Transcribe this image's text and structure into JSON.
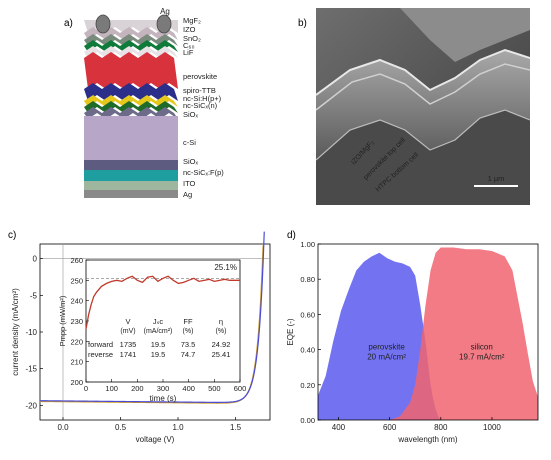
{
  "panel_a": {
    "label": "a)",
    "contact_label": "Ag",
    "layers": [
      {
        "name": "MgF₂",
        "color": "#d9d2d6"
      },
      {
        "name": "IZO",
        "color": "#c3b4be"
      },
      {
        "name": "SnO₂",
        "color": "#7a8a7d"
      },
      {
        "name": "C₆₀",
        "color": "#0f7a3a"
      },
      {
        "name": "LiF",
        "color": "#e8e2e6"
      },
      {
        "name": "perovskite",
        "color": "#d8323c"
      },
      {
        "name": "spiro-TTB",
        "color": "#2b2f8a"
      },
      {
        "name": "nc-Si:H(p+)",
        "color": "#e6c81c"
      },
      {
        "name": "nc-SiCₓ(n)",
        "color": "#1f6b2a"
      },
      {
        "name": "SiOₓ",
        "color": "#6d6b8a"
      },
      {
        "name": "c-Si",
        "color": "#b7a6c8"
      },
      {
        "name": "SiOₓ",
        "color": "#5d5c80"
      },
      {
        "name": "nc-SiCₓ:F(p)",
        "color": "#1e9e9e"
      },
      {
        "name": "ITO",
        "color": "#9eb59e"
      },
      {
        "name": "Ag",
        "color": "#8a8a8a"
      }
    ]
  },
  "panel_b": {
    "label": "b)",
    "annotations": [
      "IZO/MgF₂",
      "perovskite top cell",
      "HTPC bottom cell"
    ],
    "scale_bar": "1 µm"
  },
  "panel_c": {
    "label": "c)"
  },
  "panel_d": {
    "label": "d)"
  },
  "chart_data": [
    {
      "type": "line",
      "panel": "c",
      "xlabel": "voltage (V)",
      "ylabel": "current density (mA/cm²)",
      "xlim": [
        -0.2,
        1.8
      ],
      "ylim": [
        -22,
        2
      ],
      "xticks": [
        0.0,
        0.5,
        1.0,
        1.5
      ],
      "yticks": [
        0,
        -5,
        -10,
        -15,
        -20
      ],
      "series": [
        {
          "name": "forward",
          "color": "#cc9a1a",
          "voc": 1.735,
          "jsc": 19.5
        },
        {
          "name": "reverse",
          "color": "#4b4bd8",
          "voc": 1.741,
          "jsc": 19.5
        }
      ],
      "table": {
        "headers": [
          "V",
          "Jₛᴄ",
          "FF",
          "η"
        ],
        "units": [
          "(mV)",
          "(mA/cm²)",
          "(%)",
          "(%)"
        ],
        "rows": [
          {
            "name": "forward",
            "values": [
              "1735",
              "19.5",
              "73.5",
              "24.92"
            ],
            "color": "#c0392b"
          },
          {
            "name": "reverse",
            "values": [
              "1741",
              "19.5",
              "74.7",
              "25.41"
            ],
            "color": "#2030c0"
          }
        ]
      },
      "inset": {
        "type": "line",
        "xlabel": "time (s)",
        "ylabel": "Pmpp (mW/m²)",
        "xlim": [
          0,
          600
        ],
        "ylim": [
          200,
          260
        ],
        "xticks": [
          0,
          100,
          200,
          300,
          400,
          500,
          600
        ],
        "yticks": [
          200,
          210,
          220,
          230,
          240,
          250,
          260
        ],
        "annotation": "25.1%",
        "reference": 251,
        "x": [
          0,
          10,
          20,
          30,
          40,
          60,
          80,
          100,
          120,
          140,
          160,
          180,
          200,
          220,
          240,
          260,
          280,
          300,
          320,
          340,
          360,
          380,
          400,
          420,
          440,
          460,
          480,
          500,
          520,
          540,
          560,
          580,
          600
        ],
        "y": [
          226,
          233,
          238,
          242,
          244,
          247,
          248.5,
          249.5,
          250,
          249.5,
          251,
          252,
          250,
          249,
          251.5,
          252,
          249.5,
          251,
          252,
          250,
          248.5,
          249,
          250,
          251,
          249.5,
          250,
          250.5,
          249.5,
          250,
          250.5,
          250,
          250,
          250
        ]
      }
    },
    {
      "type": "area",
      "panel": "d",
      "xlabel": "wavelength (nm)",
      "ylabel": "EQE (-)",
      "xlim": [
        320,
        1180
      ],
      "ylim": [
        0,
        1.0
      ],
      "xticks": [
        400,
        600,
        800,
        1000
      ],
      "yticks": [
        0.0,
        0.2,
        0.4,
        0.6,
        0.8,
        1.0
      ],
      "series": [
        {
          "name": "perovskite",
          "label": "perovskite",
          "sublabel": "20 mA/cm²",
          "color": "#5a5af0",
          "x": [
            320,
            350,
            380,
            410,
            440,
            470,
            500,
            530,
            560,
            590,
            620,
            650,
            680,
            700,
            720,
            740,
            760,
            770,
            780,
            790,
            800
          ],
          "y": [
            0.14,
            0.25,
            0.45,
            0.62,
            0.74,
            0.85,
            0.9,
            0.93,
            0.95,
            0.92,
            0.9,
            0.89,
            0.87,
            0.82,
            0.65,
            0.45,
            0.2,
            0.12,
            0.06,
            0.02,
            0.0
          ]
        },
        {
          "name": "silicon",
          "label": "silicon",
          "sublabel": "19.7 mA/cm²",
          "color": "#f06470",
          "x": [
            600,
            640,
            680,
            700,
            720,
            740,
            760,
            780,
            800,
            850,
            900,
            950,
            1000,
            1050,
            1080,
            1100,
            1120,
            1140,
            1160,
            1180
          ],
          "y": [
            0.0,
            0.02,
            0.1,
            0.2,
            0.4,
            0.65,
            0.85,
            0.95,
            0.98,
            0.98,
            0.97,
            0.97,
            0.96,
            0.93,
            0.85,
            0.7,
            0.55,
            0.38,
            0.22,
            0.13
          ]
        }
      ]
    }
  ]
}
